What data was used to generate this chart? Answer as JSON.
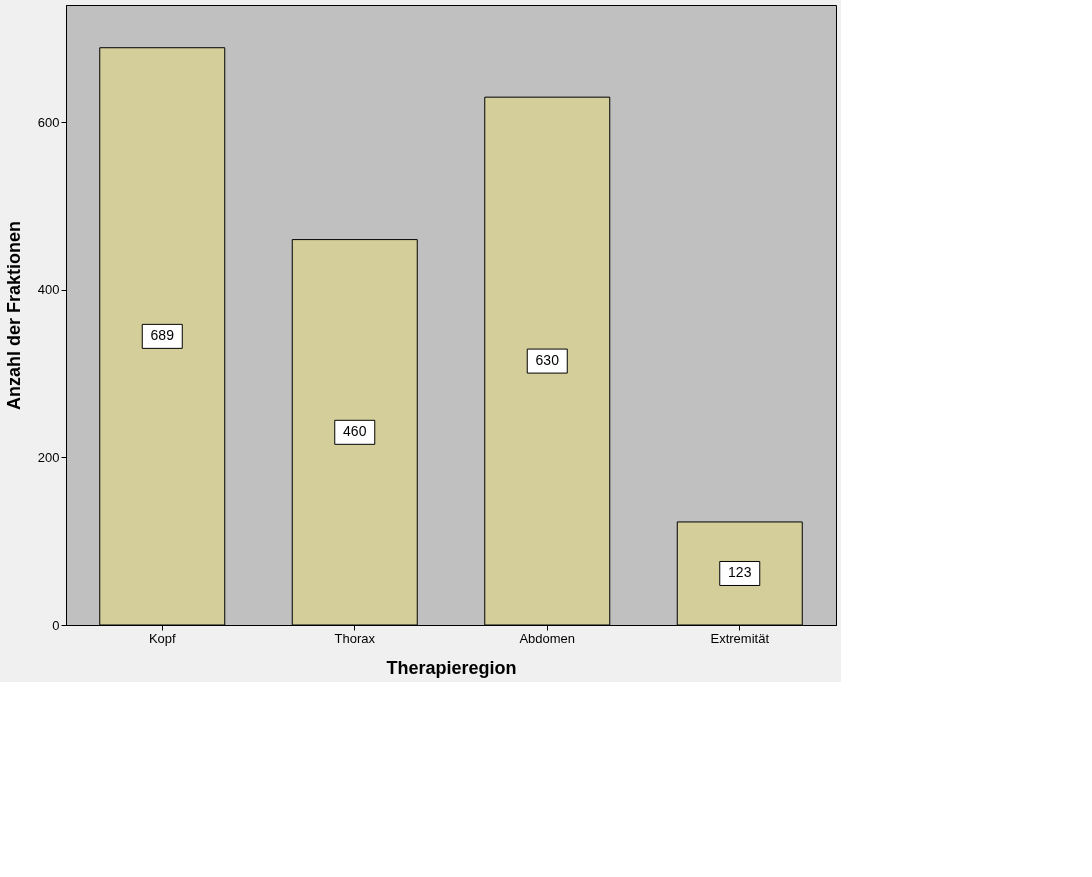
{
  "chart_data": {
    "type": "bar",
    "xlabel": "Therapieregion",
    "ylabel": "Anzahl der Fraktionen",
    "categories": [
      "Kopf",
      "Thorax",
      "Abdomen",
      "Extremität"
    ],
    "values": [
      689,
      460,
      630,
      123
    ],
    "color": "#d4cf9a",
    "ylim": [
      0,
      740
    ],
    "yticks": [
      0,
      200,
      400,
      600
    ],
    "grid": false,
    "data_labels": true
  }
}
